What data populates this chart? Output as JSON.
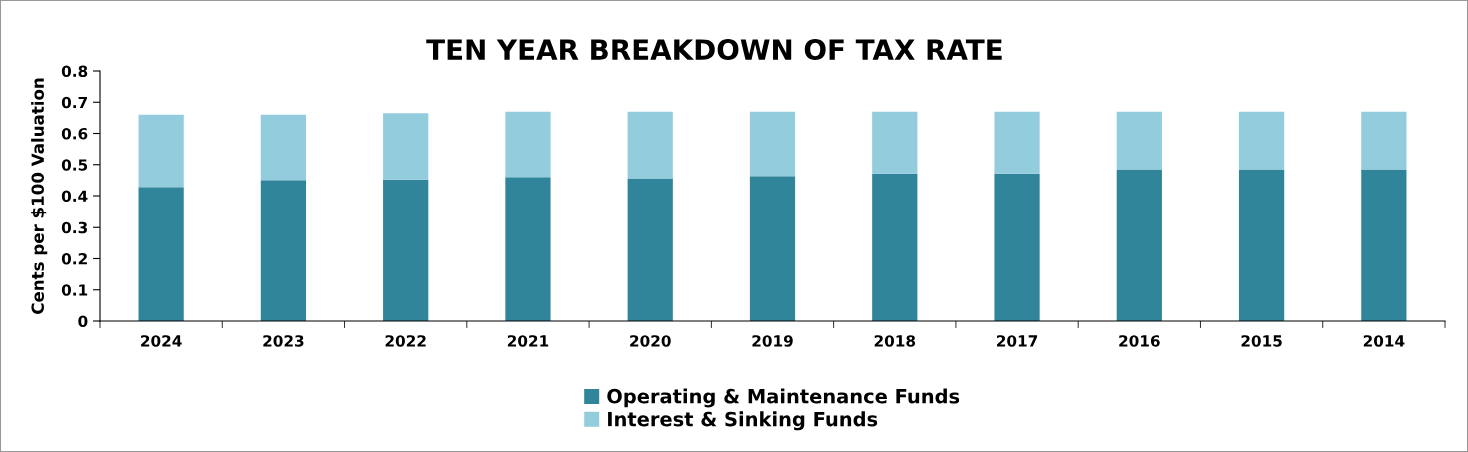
{
  "chart_data": {
    "type": "bar",
    "title": "TEN YEAR BREAKDOWN OF TAX RATE",
    "ylabel": "Cents per $100 Valuation",
    "categories": [
      "2024",
      "2023",
      "2022",
      "2021",
      "2020",
      "2019",
      "2018",
      "2017",
      "2016",
      "2015",
      "2014"
    ],
    "stacked": true,
    "series": [
      {
        "name": "Operating & Maintenance Funds",
        "color": "#31859b",
        "values": [
          0.428,
          0.45,
          0.452,
          0.46,
          0.456,
          0.463,
          0.471,
          0.471,
          0.485,
          0.485,
          0.485
        ]
      },
      {
        "name": "Interest & Sinking Funds",
        "color": "#93cddd",
        "values": [
          0.232,
          0.21,
          0.213,
          0.21,
          0.214,
          0.207,
          0.199,
          0.199,
          0.185,
          0.185,
          0.185
        ]
      }
    ],
    "ylim": [
      0,
      0.8
    ],
    "yticks": [
      0,
      0.1,
      0.2,
      0.3,
      0.4,
      0.5,
      0.6,
      0.7,
      0.8
    ],
    "grid": false,
    "legend": "bottom"
  }
}
